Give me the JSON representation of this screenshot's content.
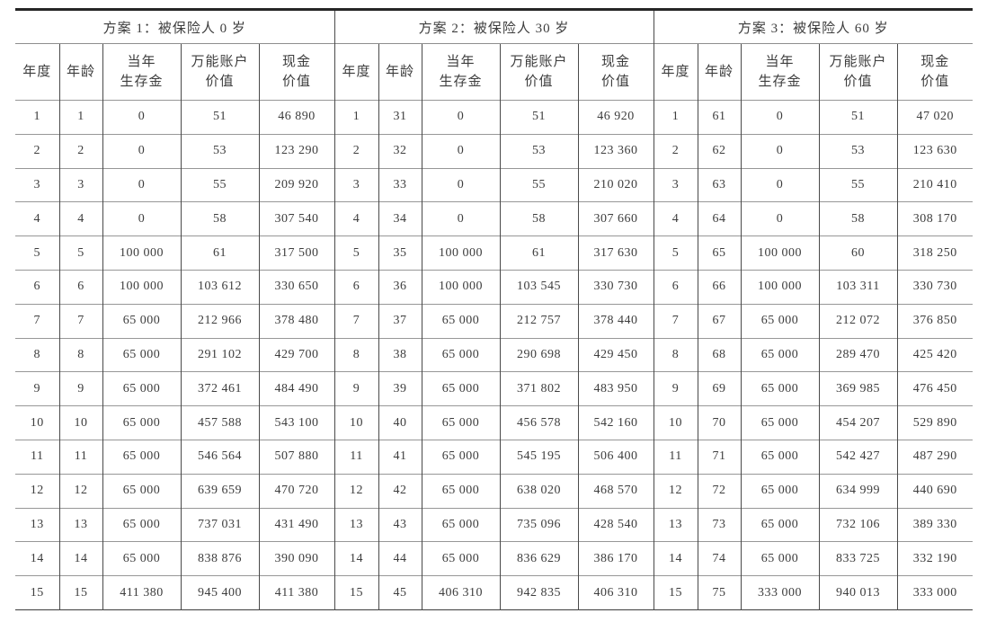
{
  "page": {
    "background": "#ffffff",
    "text_color": "#3d3d3d",
    "rule_colors": {
      "top_rule": "#262626",
      "bottom_rule": "#3c3c3c",
      "horizontal": "#979797",
      "vertical": "#4a4a4a"
    }
  },
  "table": {
    "column_headers": [
      {
        "lines": [
          "年度"
        ]
      },
      {
        "lines": [
          "年龄"
        ]
      },
      {
        "lines": [
          "当年",
          "生存金"
        ]
      },
      {
        "lines": [
          "万能账户",
          "价值"
        ]
      },
      {
        "lines": [
          "现金",
          "价值"
        ]
      }
    ],
    "sections": [
      {
        "title": "方案 1：被保险人 0 岁",
        "rows": [
          [
            "1",
            "1",
            "0",
            "51",
            "46 890"
          ],
          [
            "2",
            "2",
            "0",
            "53",
            "123 290"
          ],
          [
            "3",
            "3",
            "0",
            "55",
            "209 920"
          ],
          [
            "4",
            "4",
            "0",
            "58",
            "307 540"
          ],
          [
            "5",
            "5",
            "100 000",
            "61",
            "317 500"
          ],
          [
            "6",
            "6",
            "100 000",
            "103 612",
            "330 650"
          ],
          [
            "7",
            "7",
            "65 000",
            "212 966",
            "378 480"
          ],
          [
            "8",
            "8",
            "65 000",
            "291 102",
            "429 700"
          ],
          [
            "9",
            "9",
            "65 000",
            "372 461",
            "484 490"
          ],
          [
            "10",
            "10",
            "65 000",
            "457 588",
            "543 100"
          ],
          [
            "11",
            "11",
            "65 000",
            "546 564",
            "507 880"
          ],
          [
            "12",
            "12",
            "65 000",
            "639 659",
            "470 720"
          ],
          [
            "13",
            "13",
            "65 000",
            "737 031",
            "431 490"
          ],
          [
            "14",
            "14",
            "65 000",
            "838 876",
            "390 090"
          ],
          [
            "15",
            "15",
            "411 380",
            "945 400",
            "411 380"
          ]
        ]
      },
      {
        "title": "方案 2：被保险人 30 岁",
        "rows": [
          [
            "1",
            "31",
            "0",
            "51",
            "46 920"
          ],
          [
            "2",
            "32",
            "0",
            "53",
            "123 360"
          ],
          [
            "3",
            "33",
            "0",
            "55",
            "210 020"
          ],
          [
            "4",
            "34",
            "0",
            "58",
            "307 660"
          ],
          [
            "5",
            "35",
            "100 000",
            "61",
            "317 630"
          ],
          [
            "6",
            "36",
            "100 000",
            "103 545",
            "330 730"
          ],
          [
            "7",
            "37",
            "65 000",
            "212 757",
            "378 440"
          ],
          [
            "8",
            "38",
            "65 000",
            "290 698",
            "429 450"
          ],
          [
            "9",
            "39",
            "65 000",
            "371 802",
            "483 950"
          ],
          [
            "10",
            "40",
            "65 000",
            "456 578",
            "542 160"
          ],
          [
            "11",
            "41",
            "65 000",
            "545 195",
            "506 400"
          ],
          [
            "12",
            "42",
            "65 000",
            "638 020",
            "468 570"
          ],
          [
            "13",
            "43",
            "65 000",
            "735 096",
            "428 540"
          ],
          [
            "14",
            "44",
            "65 000",
            "836 629",
            "386 170"
          ],
          [
            "15",
            "45",
            "406 310",
            "942 835",
            "406 310"
          ]
        ]
      },
      {
        "title": "方案 3：被保险人 60 岁",
        "rows": [
          [
            "1",
            "61",
            "0",
            "51",
            "47 020"
          ],
          [
            "2",
            "62",
            "0",
            "53",
            "123 630"
          ],
          [
            "3",
            "63",
            "0",
            "55",
            "210 410"
          ],
          [
            "4",
            "64",
            "0",
            "58",
            "308 170"
          ],
          [
            "5",
            "65",
            "100 000",
            "60",
            "318 250"
          ],
          [
            "6",
            "66",
            "100 000",
            "103 311",
            "330 730"
          ],
          [
            "7",
            "67",
            "65 000",
            "212 072",
            "376 850"
          ],
          [
            "8",
            "68",
            "65 000",
            "289 470",
            "425 420"
          ],
          [
            "9",
            "69",
            "65 000",
            "369 985",
            "476 450"
          ],
          [
            "10",
            "70",
            "65 000",
            "454 207",
            "529 890"
          ],
          [
            "11",
            "71",
            "65 000",
            "542 427",
            "487 290"
          ],
          [
            "12",
            "72",
            "65 000",
            "634 999",
            "440 690"
          ],
          [
            "13",
            "73",
            "65 000",
            "732 106",
            "389 330"
          ],
          [
            "14",
            "74",
            "65 000",
            "833 725",
            "332 190"
          ],
          [
            "15",
            "75",
            "333 000",
            "940 013",
            "333 000"
          ]
        ]
      }
    ]
  }
}
